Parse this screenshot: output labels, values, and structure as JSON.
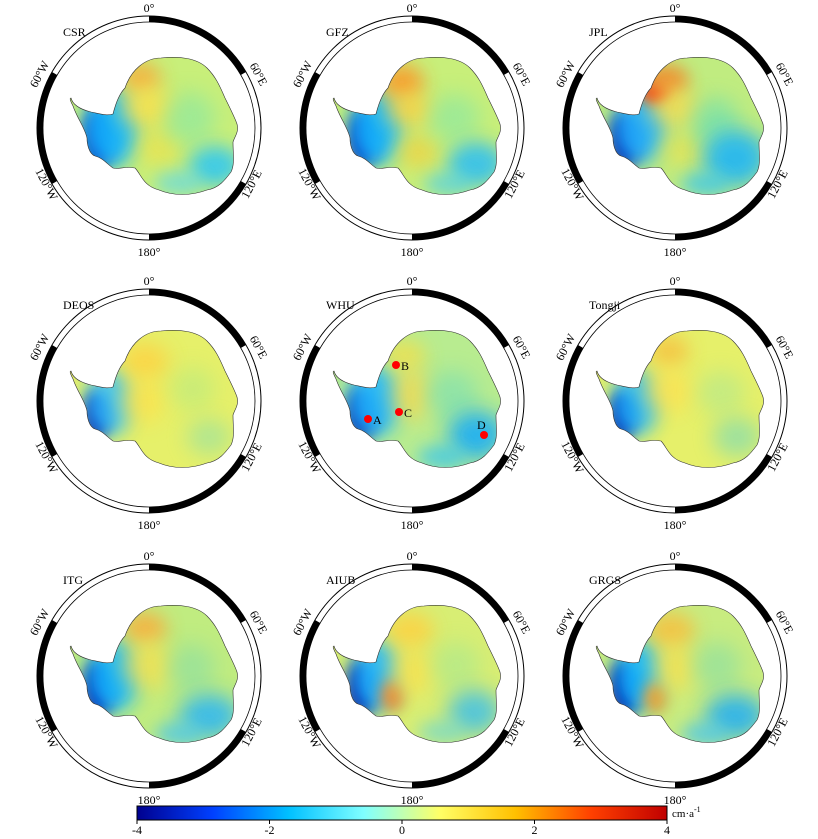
{
  "panels": [
    {
      "name": "CSR",
      "variant": "csr"
    },
    {
      "name": "GFZ",
      "variant": "gfz"
    },
    {
      "name": "JPL",
      "variant": "jpl"
    },
    {
      "name": "DEOS",
      "variant": "deos"
    },
    {
      "name": "WHU",
      "variant": "whu"
    },
    {
      "name": "Tongji",
      "variant": "tongji"
    },
    {
      "name": "ITG",
      "variant": "itg"
    },
    {
      "name": "AIUB",
      "variant": "aiub"
    },
    {
      "name": "GRGS",
      "variant": "grgs"
    }
  ],
  "frame_labels": {
    "top": "0°",
    "bottom": "180°",
    "left_upper": "60°W",
    "left_lower": "120°W",
    "right_upper": "60°E",
    "right_lower": "120°E"
  },
  "points": [
    {
      "label": "A",
      "panel": "WHU"
    },
    {
      "label": "B",
      "panel": "WHU"
    },
    {
      "label": "C",
      "panel": "WHU"
    },
    {
      "label": "D",
      "panel": "WHU"
    }
  ],
  "colorbar": {
    "ticks": [
      "-4",
      "-2",
      "0",
      "2",
      "4"
    ],
    "unit": "cm·a",
    "unit_exp": "-1",
    "min": -4,
    "max": 4,
    "colors": [
      "#00008f",
      "#0040ff",
      "#00c0ff",
      "#80ffff",
      "#ffff66",
      "#ffc000",
      "#ff4000",
      "#c00000"
    ]
  }
}
